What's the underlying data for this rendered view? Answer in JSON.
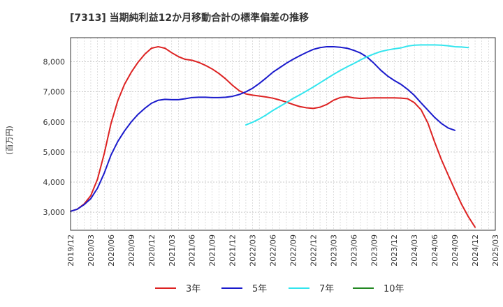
{
  "chart_data": {
    "type": "line",
    "title": "[7313]  当期純利益12か月移動合計の標準偏差の推移",
    "ylabel": "(百万円)",
    "xlabel": "",
    "ylim": [
      2400,
      8800
    ],
    "yticks": [
      3000,
      4000,
      5000,
      6000,
      7000,
      8000
    ],
    "ytick_labels": [
      "3,000",
      "4,000",
      "5,000",
      "6,000",
      "7,000",
      "8,000"
    ],
    "x_start": "2019-12",
    "x_end": "2025-03",
    "xtick_labels": [
      "2019/12",
      "2020/03",
      "2020/06",
      "2020/09",
      "2020/12",
      "2021/03",
      "2021/06",
      "2021/09",
      "2021/12",
      "2022/03",
      "2022/06",
      "2022/09",
      "2022/12",
      "2023/03",
      "2023/06",
      "2023/09",
      "2023/12",
      "2024/03",
      "2024/06",
      "2024/09",
      "2024/12",
      "2025/03"
    ],
    "grid": true,
    "legend_position": "bottom",
    "series": [
      {
        "name": "3年",
        "color": "#dd2222",
        "start": "2019-12",
        "values": [
          3030,
          3100,
          3270,
          3550,
          4100,
          4950,
          5950,
          6700,
          7250,
          7650,
          7980,
          8250,
          8450,
          8500,
          8450,
          8300,
          8170,
          8080,
          8050,
          7980,
          7880,
          7760,
          7610,
          7430,
          7220,
          7040,
          6930,
          6890,
          6860,
          6830,
          6790,
          6730,
          6660,
          6580,
          6510,
          6470,
          6450,
          6490,
          6580,
          6720,
          6810,
          6840,
          6800,
          6780,
          6790,
          6800,
          6800,
          6800,
          6800,
          6790,
          6770,
          6640,
          6400,
          5960,
          5330,
          4750,
          4240,
          3740,
          3260,
          2850,
          2500
        ]
      },
      {
        "name": "5年",
        "color": "#1a1acc",
        "start": "2019-12",
        "values": [
          3030,
          3100,
          3250,
          3450,
          3800,
          4300,
          4900,
          5350,
          5700,
          6000,
          6250,
          6450,
          6620,
          6720,
          6750,
          6740,
          6740,
          6770,
          6810,
          6820,
          6820,
          6810,
          6810,
          6820,
          6850,
          6910,
          7000,
          7120,
          7280,
          7460,
          7650,
          7800,
          7950,
          8080,
          8200,
          8310,
          8410,
          8470,
          8500,
          8500,
          8480,
          8450,
          8380,
          8290,
          8150,
          7950,
          7720,
          7530,
          7380,
          7250,
          7080,
          6880,
          6630,
          6390,
          6150,
          5950,
          5800,
          5720
        ]
      },
      {
        "name": "7年",
        "color": "#33e5ee",
        "start": "2022-02",
        "values": [
          5900,
          5990,
          6100,
          6230,
          6380,
          6510,
          6640,
          6780,
          6900,
          7030,
          7160,
          7300,
          7440,
          7580,
          7710,
          7830,
          7940,
          8060,
          8170,
          8260,
          8340,
          8390,
          8430,
          8460,
          8520,
          8550,
          8560,
          8560,
          8560,
          8550,
          8530,
          8500,
          8490,
          8470
        ]
      },
      {
        "name": "10年",
        "color": "#228822",
        "start": "2024-12",
        "values": []
      }
    ]
  }
}
